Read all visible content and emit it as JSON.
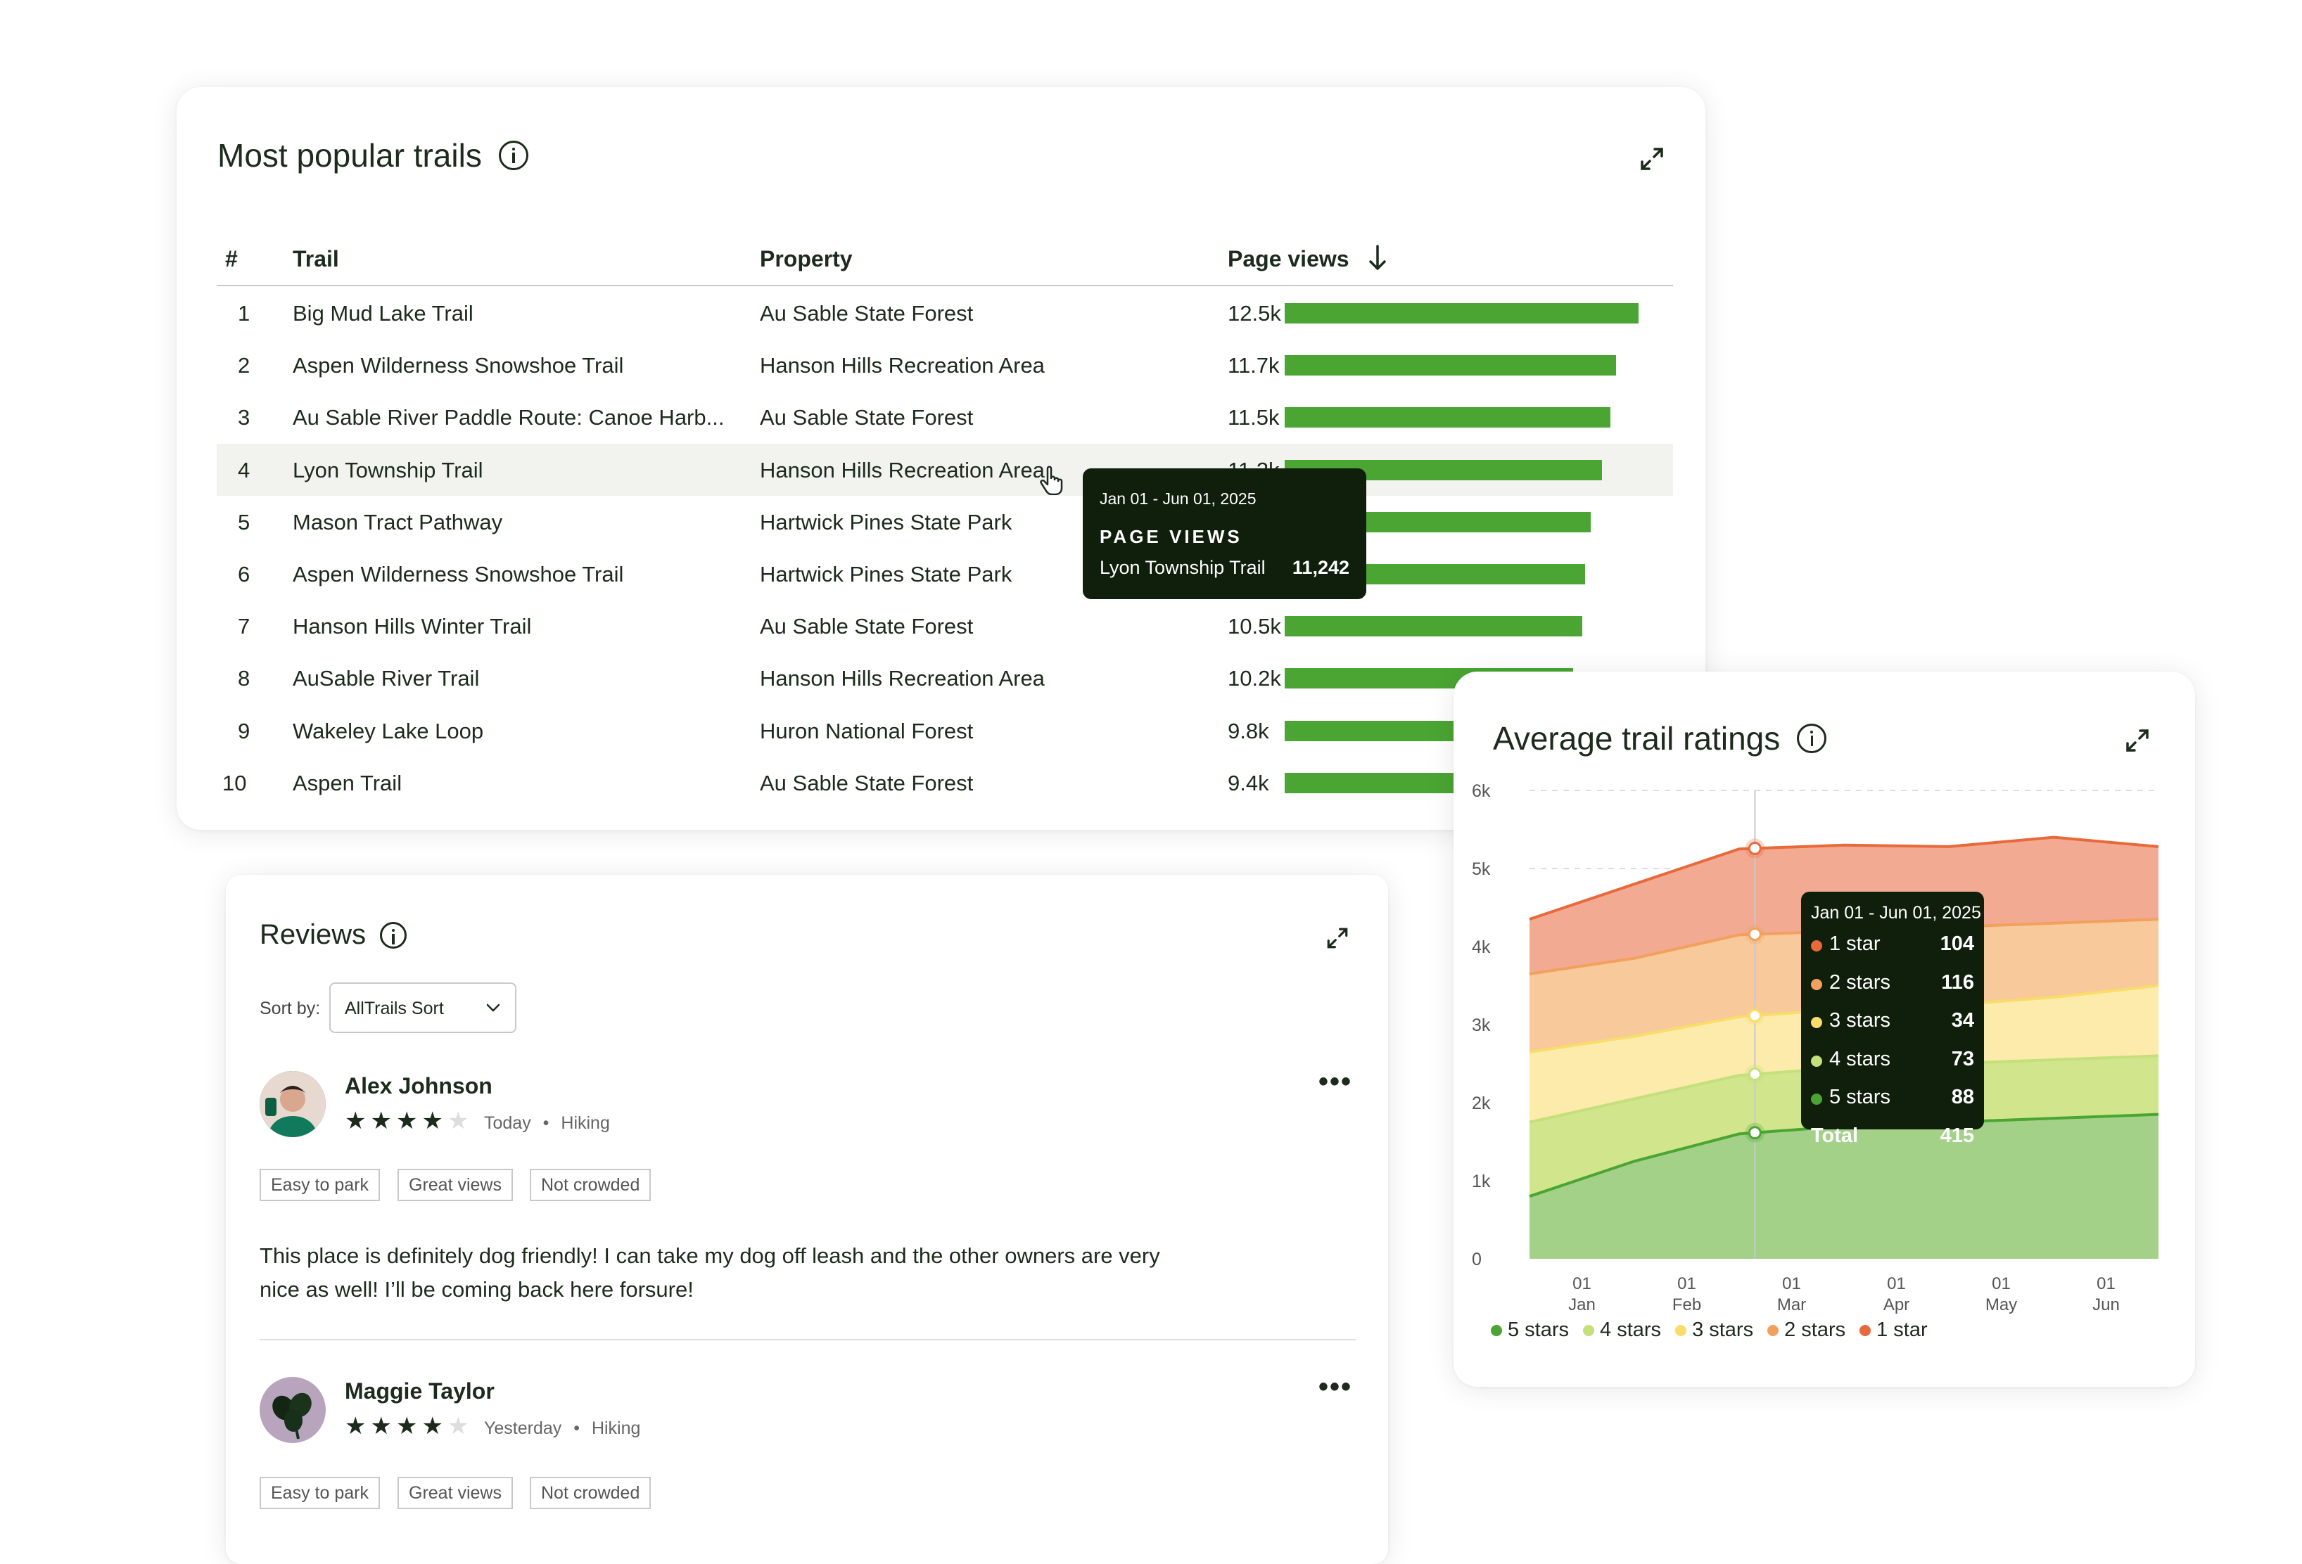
{
  "trails": {
    "title": "Most popular trails",
    "headers": {
      "rank": "#",
      "trail": "Trail",
      "property": "Property",
      "views": "Page views"
    },
    "rows": [
      {
        "rank": "1",
        "trail": "Big Mud Lake Trail",
        "property": "Au Sable State Forest",
        "views": "12.5k",
        "value": 12500
      },
      {
        "rank": "2",
        "trail": "Aspen Wilderness Snowshoe Trail",
        "property": "Hanson Hills Recreation Area",
        "views": "11.7k",
        "value": 11700
      },
      {
        "rank": "3",
        "trail": "Au Sable River Paddle Route: Canoe Harb...",
        "property": "Au Sable State Forest",
        "views": "11.5k",
        "value": 11500
      },
      {
        "rank": "4",
        "trail": "Lyon Township Trail",
        "property": "Hanson Hills Recreation Area",
        "views": "11.2k",
        "value": 11200
      },
      {
        "rank": "5",
        "trail": "Mason Tract Pathway",
        "property": "Hartwick Pines State Park",
        "views": "",
        "value": 10800
      },
      {
        "rank": "6",
        "trail": "Aspen Wilderness Snowshoe Trail",
        "property": "Hartwick Pines State Park",
        "views": "",
        "value": 10600
      },
      {
        "rank": "7",
        "trail": "Hanson Hills Winter Trail",
        "property": "Au Sable State Forest",
        "views": "10.5k",
        "value": 10500
      },
      {
        "rank": "8",
        "trail": "AuSable River Trail",
        "property": "Hanson Hills Recreation Area",
        "views": "10.2k",
        "value": 10200
      },
      {
        "rank": "9",
        "trail": "Wakeley Lake Loop",
        "property": "Huron National Forest",
        "views": "9.8k",
        "value": 9800
      },
      {
        "rank": "10",
        "trail": "Aspen Trail",
        "property": "Au Sable State Forest",
        "views": "9.4k",
        "value": 9400
      }
    ],
    "bar_max": 12500,
    "tooltip": {
      "date": "Jan 01 - Jun 01, 2025",
      "label": "PAGE VIEWS",
      "trail": "Lyon Township Trail",
      "value": "11,242"
    }
  },
  "reviews": {
    "title": "Reviews",
    "sort_label": "Sort by:",
    "sort_value": "AllTrails Sort",
    "items": [
      {
        "name": "Alex Johnson",
        "rating": 4,
        "date": "Today",
        "activity": "Hiking",
        "tags": [
          "Easy to park",
          "Great views",
          "Not crowded"
        ],
        "text": "This place is definitely dog friendly! I can take my dog off leash and the other owners are very nice as well! I’ll be coming back here forsure!"
      },
      {
        "name": "Maggie Taylor",
        "rating": 4,
        "date": "Yesterday",
        "activity": "Hiking",
        "tags": [
          "Easy to park",
          "Great views",
          "Not crowded"
        ]
      }
    ],
    "bullet": "•",
    "more_icon": "•••"
  },
  "ratings": {
    "title": "Average trail ratings",
    "tooltip": {
      "date": "Jan 01 - Jun 01, 2025",
      "rows": [
        {
          "label": "1 star",
          "value": "104",
          "color": "#e8693a"
        },
        {
          "label": "2 stars",
          "value": "116",
          "color": "#f3a05c"
        },
        {
          "label": "3 stars",
          "value": "34",
          "color": "#f9dc6a"
        },
        {
          "label": "4 stars",
          "value": "73",
          "color": "#c4e07a"
        },
        {
          "label": "5 stars",
          "value": "88",
          "color": "#4aa532"
        }
      ],
      "total_label": "Total",
      "total_value": "415"
    },
    "legend": [
      {
        "label": "5 stars",
        "color": "#4aa532"
      },
      {
        "label": "4 stars",
        "color": "#c4e07a"
      },
      {
        "label": "3 stars",
        "color": "#f9dc6a"
      },
      {
        "label": "2 stars",
        "color": "#f3a05c"
      },
      {
        "label": "1 star",
        "color": "#e8693a"
      }
    ]
  },
  "chart_data": {
    "type": "area",
    "stacked": true,
    "ylim": [
      0,
      6000
    ],
    "yticks": [
      "0",
      "1k",
      "2k",
      "3k",
      "4k",
      "5k",
      "6k"
    ],
    "ytick_values": [
      0,
      1000,
      2000,
      3000,
      4000,
      5000,
      6000
    ],
    "x_labels": [
      [
        "01",
        "Jan"
      ],
      [
        "01",
        "Feb"
      ],
      [
        "01",
        "Mar"
      ],
      [
        "01",
        "Apr"
      ],
      [
        "01",
        "May"
      ],
      [
        "01",
        "Jun"
      ]
    ],
    "x": [
      0,
      1,
      2,
      3,
      4,
      5,
      6
    ],
    "xlim": [
      0,
      6
    ],
    "tick_x": [
      0.5,
      1.5,
      2.5,
      3.5,
      4.5,
      5.5
    ],
    "highlight_x": 2.15,
    "grid": true,
    "legend_position": "bottom",
    "series": [
      {
        "name": "5 stars",
        "color": "#4aa532",
        "fill": "#a3d188",
        "cumulative": [
          800,
          1250,
          1600,
          1700,
          1750,
          1800,
          1850
        ]
      },
      {
        "name": "4 stars",
        "color": "#c4e07a",
        "fill": "#d0e58c",
        "cumulative": [
          1750,
          2050,
          2350,
          2450,
          2500,
          2550,
          2600
        ]
      },
      {
        "name": "3 stars",
        "color": "#f9dc6a",
        "fill": "#fcebaa",
        "cumulative": [
          2650,
          2850,
          3100,
          3200,
          3250,
          3350,
          3500
        ]
      },
      {
        "name": "2 stars",
        "color": "#f3a05c",
        "fill": "#f7c99b",
        "cumulative": [
          3650,
          3850,
          4150,
          4200,
          4250,
          4300,
          4350
        ]
      },
      {
        "name": "1 star",
        "color": "#e8693a",
        "fill": "#f2aa92",
        "cumulative": [
          4350,
          4800,
          5250,
          5300,
          5280,
          5400,
          5280
        ]
      }
    ]
  }
}
